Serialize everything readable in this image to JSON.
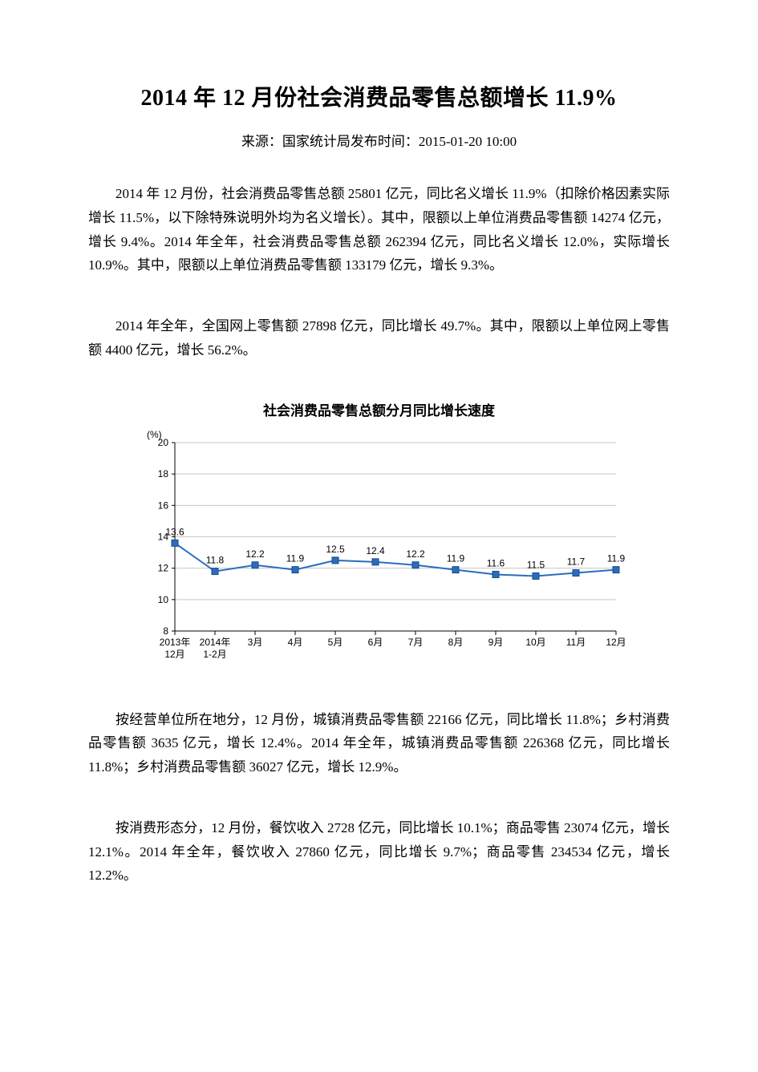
{
  "title": "2014 年 12 月份社会消费品零售总额增长 11.9%",
  "subtitle": "来源：国家统计局发布时间：2015-01-20 10:00",
  "paragraphs": {
    "p1": "2014 年 12 月份，社会消费品零售总额 25801 亿元，同比名义增长 11.9%（扣除价格因素实际增长 11.5%，以下除特殊说明外均为名义增长）。其中，限额以上单位消费品零售额 14274 亿元，增长 9.4%。2014 年全年，社会消费品零售总额 262394 亿元，同比名义增长 12.0%，实际增长 10.9%。其中，限额以上单位消费品零售额 133179 亿元，增长 9.3%。",
    "p2": "2014 年全年，全国网上零售额 27898 亿元，同比增长 49.7%。其中，限额以上单位网上零售额 4400 亿元，增长 56.2%。",
    "p3": "按经营单位所在地分，12 月份，城镇消费品零售额 22166 亿元，同比增长 11.8%；乡村消费品零售额 3635 亿元，增长 12.4%。2014 年全年，城镇消费品零售额 226368 亿元，同比增长 11.8%；乡村消费品零售额 36027 亿元，增长 12.9%。",
    "p4": "按消费形态分，12 月份，餐饮收入 2728 亿元，同比增长 10.1%；商品零售 23074 亿元，增长 12.1%。2014 年全年，餐饮收入 27860 亿元，同比增长 9.7%；商品零售 234534 亿元，增长 12.2%。"
  },
  "chart": {
    "type": "line",
    "title": "社会消费品零售总额分月同比增长速度",
    "y_unit": "(%)",
    "categories_top": [
      "2013年",
      "2014年",
      "3月",
      "4月",
      "5月",
      "6月",
      "7月",
      "8月",
      "9月",
      "10月",
      "11月",
      "12月"
    ],
    "categories_bottom": [
      "12月",
      "1-2月",
      "",
      "",
      "",
      "",
      "",
      "",
      "",
      "",
      "",
      ""
    ],
    "values": [
      13.6,
      11.8,
      12.2,
      11.9,
      12.5,
      12.4,
      12.2,
      11.9,
      11.6,
      11.5,
      11.7,
      11.9
    ],
    "ylim": [
      8,
      20
    ],
    "ytick_step": 2,
    "line_color": "#2a6dc0",
    "marker_fill": "#2a6dc0",
    "marker_border": "#1b4a85",
    "grid_color": "#c7c7c7",
    "axis_color": "#000000",
    "background_color": "#ffffff",
    "marker_size": 4,
    "line_width": 2,
    "title_fontsize": 17,
    "label_fontsize": 12
  }
}
